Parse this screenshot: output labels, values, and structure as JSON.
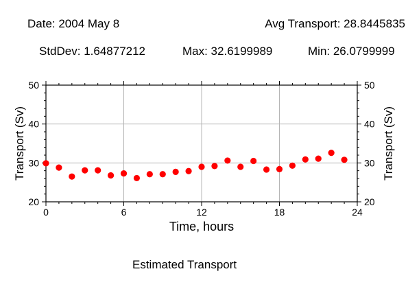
{
  "header": {
    "date": "Date: 2004 May 8",
    "avg": "Avg Transport: 28.8445835",
    "stddev": "StdDev: 1.64877212",
    "max": "Max: 32.6199989",
    "min": "Min: 26.0799999"
  },
  "caption": "Estimated Transport",
  "chart_data": {
    "type": "scatter",
    "xlabel": "Time, hours",
    "ylabel": "Transport (Sv)",
    "xlim": [
      0,
      24
    ],
    "ylim": [
      20,
      50
    ],
    "xticks": [
      0,
      6,
      12,
      18,
      24
    ],
    "yticks": [
      20,
      30,
      40,
      50
    ],
    "grid": true,
    "marker_color": "#ff0000",
    "x": [
      0,
      1,
      2,
      3,
      4,
      5,
      6,
      7,
      8,
      9,
      10,
      11,
      12,
      13,
      14,
      15,
      16,
      17,
      18,
      19,
      20,
      21,
      22,
      23
    ],
    "y": [
      29.9,
      28.8,
      26.5,
      28.1,
      28.1,
      26.8,
      27.3,
      26.1,
      27.1,
      27.1,
      27.7,
      27.9,
      29.0,
      29.2,
      30.6,
      29.0,
      30.5,
      28.3,
      28.4,
      29.3,
      30.9,
      31.1,
      32.6,
      30.8
    ]
  }
}
